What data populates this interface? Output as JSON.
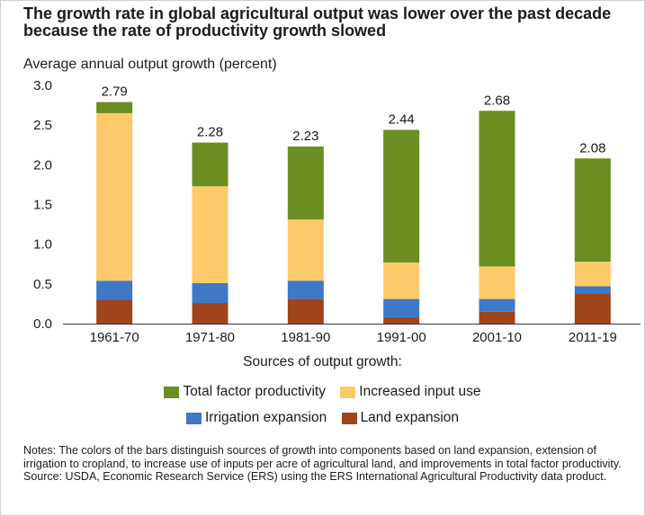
{
  "chart_data": {
    "type": "bar",
    "stacked": true,
    "title": "The growth rate in global agricultural output was lower over the past decade because the rate of productivity growth slowed",
    "ylabel": "Average annual output growth (percent)",
    "xlabel": "Sources of output growth:",
    "ylim": [
      0,
      3.0
    ],
    "yticks": [
      "0.0",
      "0.5",
      "1.0",
      "1.5",
      "2.0",
      "2.5",
      "3.0"
    ],
    "categories": [
      "1961-70",
      "1971-80",
      "1981-90",
      "1991-00",
      "2001-10",
      "2011-19"
    ],
    "totals": [
      "2.79",
      "2.28",
      "2.23",
      "2.44",
      "2.68",
      "2.08"
    ],
    "series": [
      {
        "name": "Land expansion",
        "color": "#a0441b",
        "values": [
          0.3,
          0.26,
          0.31,
          0.08,
          0.15,
          0.38
        ]
      },
      {
        "name": "Irrigation expansion",
        "color": "#3f78c4",
        "values": [
          0.24,
          0.25,
          0.23,
          0.23,
          0.16,
          0.09
        ]
      },
      {
        "name": "Increased input use",
        "color": "#fdc96b",
        "values": [
          2.11,
          1.22,
          0.77,
          0.46,
          0.41,
          0.31
        ]
      },
      {
        "name": "Total factor productivity",
        "color": "#6b8e23",
        "values": [
          0.14,
          0.55,
          0.92,
          1.67,
          1.96,
          1.3
        ]
      }
    ],
    "legend_order": [
      [
        "Total factor productivity",
        "Increased input use"
      ],
      [
        "Irrigation expansion",
        "Land expansion"
      ]
    ],
    "legend_placement": "bottom",
    "grid": false
  },
  "notes": {
    "text": "Notes: The colors of the bars distinguish sources of growth into components based on land expansion, extension of irrigation to cropland, to increase use of inputs per acre of agricultural land, and improvements in total factor productivity.",
    "source": "Source: USDA, Economic Research Service (ERS) using the ERS International Agricultural Productivity data product."
  }
}
